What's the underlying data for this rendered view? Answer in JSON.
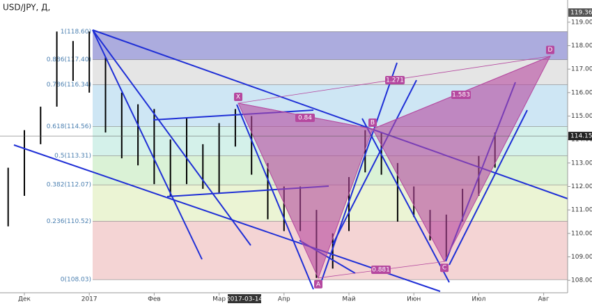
{
  "chart_data": {
    "type": "ohlc",
    "title": "USD/JPY, Д,",
    "categories": [
      null,
      "Дек",
      null,
      null,
      null,
      "2017",
      null,
      null,
      null,
      "Фев",
      null,
      null,
      null,
      "Мар",
      null,
      null,
      null,
      "Апр",
      null,
      null,
      null,
      "Май",
      null,
      null,
      null,
      "Июн",
      null,
      null,
      null,
      "Июл",
      null,
      null,
      null,
      "Авг",
      null
    ],
    "high": [
      112.8,
      114.4,
      115.4,
      118.6,
      118.2,
      118.6,
      117.5,
      116.0,
      115.5,
      115.3,
      114.0,
      114.9,
      113.8,
      114.7,
      115.3,
      115.0,
      113.0,
      112.0,
      112.0,
      111.0,
      110.0,
      112.4,
      114.4,
      114.3,
      113.0,
      112.0,
      111.0,
      110.8,
      111.9,
      113.3,
      114.3,
      null,
      null,
      null,
      null
    ],
    "low": [
      110.3,
      111.6,
      113.8,
      115.4,
      116.5,
      116.0,
      114.3,
      113.2,
      112.9,
      112.1,
      111.6,
      112.1,
      111.9,
      111.7,
      113.7,
      112.5,
      110.6,
      110.1,
      110.1,
      108.1,
      108.5,
      110.1,
      112.6,
      112.5,
      110.5,
      110.7,
      109.7,
      108.9,
      110.5,
      111.6,
      112.8,
      null,
      null,
      null,
      null
    ],
    "color": "#000000",
    "ylim": [
      107.47,
      119.53
    ],
    "yticks": [
      {
        "value": 108,
        "label": "108.00"
      },
      {
        "value": 109,
        "label": "109.00"
      },
      {
        "value": 110,
        "label": "110.00"
      },
      {
        "value": 111,
        "label": "111.00"
      },
      {
        "value": 112,
        "label": "112.00"
      },
      {
        "value": 113,
        "label": "113.00"
      },
      {
        "value": 114,
        "label": "114.00"
      },
      {
        "value": 115,
        "label": "115.00"
      },
      {
        "value": 116,
        "label": "116.00"
      },
      {
        "value": 117,
        "label": "117.00"
      },
      {
        "value": 118,
        "label": "118.00"
      },
      {
        "value": 119,
        "label": "119.00"
      }
    ],
    "last_price": 114.15,
    "top_price": 119.36,
    "cursor_label": "2017-03-14",
    "fib_levels": [
      {
        "value": 118.6,
        "label": "1(118.60)",
        "color": "#9d9dd8"
      },
      {
        "value": 117.4,
        "label": "0.886(117.40)",
        "color": "#e0e0e0"
      },
      {
        "value": 116.34,
        "label": "0.786(116.34)",
        "color": "#c6e2f2"
      },
      {
        "value": 114.56,
        "label": "0.618(114.56)",
        "color": "#cdeee6"
      },
      {
        "value": 113.31,
        "label": "0.5(113.31)",
        "color": "#d4f0cf"
      },
      {
        "value": 112.07,
        "label": "0.382(112.07)",
        "color": "#e8f2cc"
      },
      {
        "value": 110.52,
        "label": "0.236(110.52)",
        "color": "#f2cccc"
      },
      {
        "value": 108.03,
        "label": "0(108.03)",
        "color": "#f2cccc"
      }
    ],
    "pattern": {
      "color": "#b5489f",
      "points": [
        {
          "label": "X",
          "value": 115.55
        },
        {
          "label": "A",
          "value": 108.1
        },
        {
          "label": "B",
          "value": 114.45
        },
        {
          "label": "C",
          "value": 108.8
        },
        {
          "label": "D",
          "value": 117.55
        }
      ],
      "ratios": [
        "0.84",
        "1.271",
        "1.583",
        "0.881"
      ]
    }
  }
}
